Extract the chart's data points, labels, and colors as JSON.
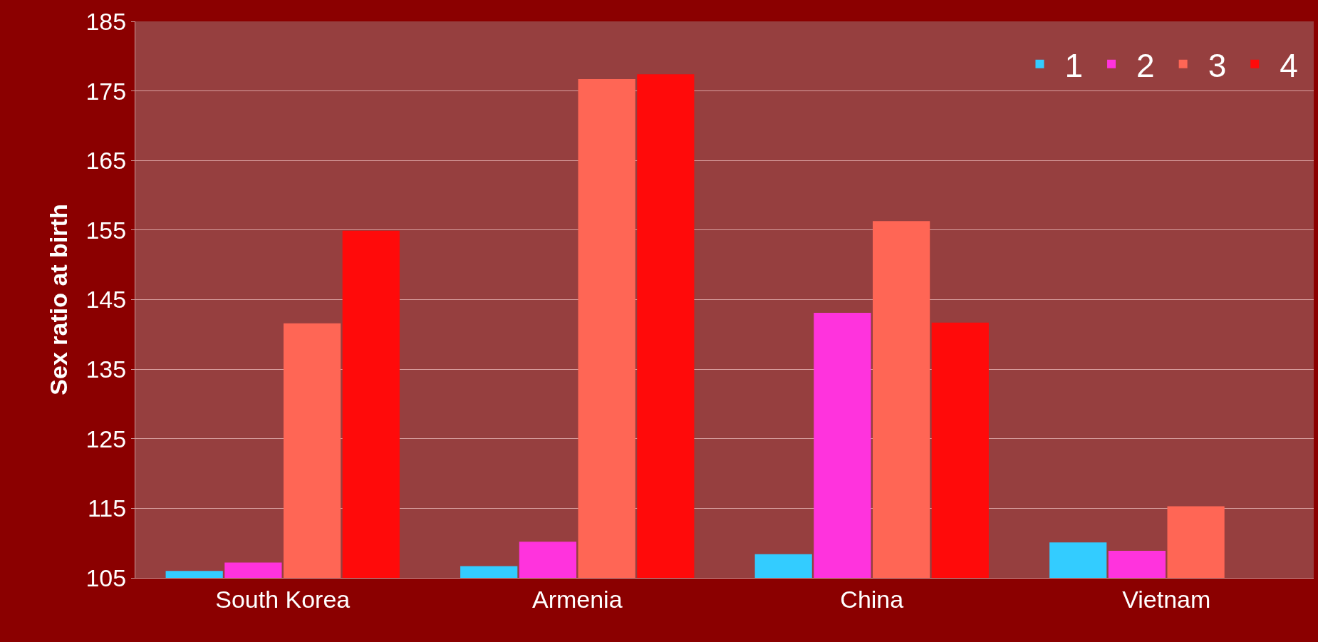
{
  "chart_data": {
    "type": "bar",
    "ylabel": "Sex ratio at birth",
    "categories": [
      "South Korea",
      "Armenia",
      "China",
      "Vietnam"
    ],
    "series": [
      {
        "name": "1",
        "color": "#33ccff",
        "values": [
          106.0,
          106.7,
          108.4,
          110.1
        ]
      },
      {
        "name": "2",
        "color": "#ff33dd",
        "values": [
          107.2,
          110.2,
          143.1,
          108.9
        ]
      },
      {
        "name": "3",
        "color": "#ff6655",
        "values": [
          141.6,
          176.7,
          156.3,
          115.3
        ]
      },
      {
        "name": "4",
        "color": "#ff0a0a",
        "values": [
          154.9,
          177.4,
          141.7,
          null
        ]
      }
    ],
    "ylim": [
      105,
      185
    ],
    "yticks": [
      105,
      115,
      125,
      135,
      145,
      155,
      165,
      175,
      185
    ],
    "grid": "y",
    "legend": "top right"
  }
}
